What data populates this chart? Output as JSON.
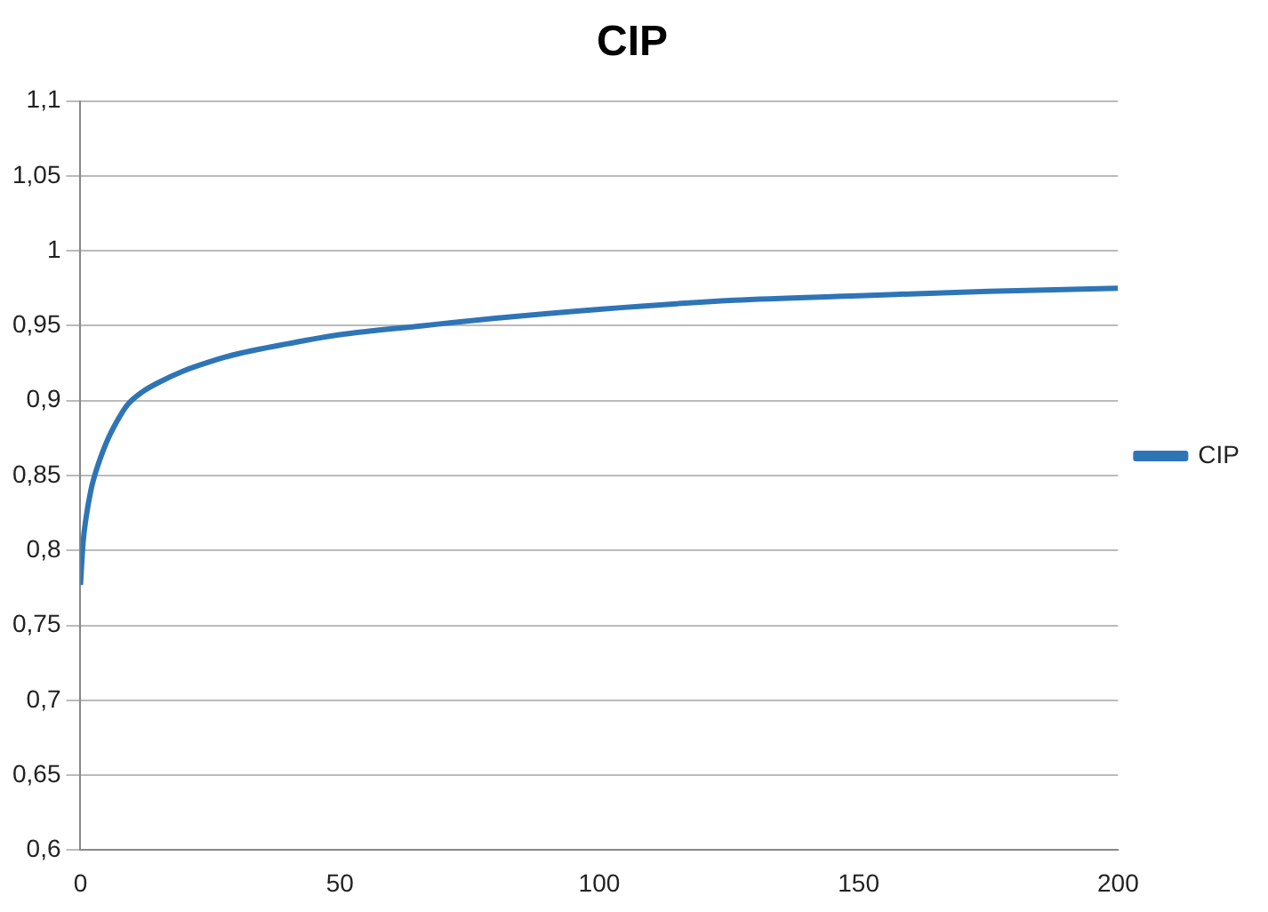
{
  "chart_data": {
    "type": "line",
    "title": "CIP",
    "x": [
      0,
      0.5,
      1,
      2,
      3,
      5,
      7,
      9,
      12,
      15,
      20,
      25,
      30,
      40,
      50,
      66,
      80,
      100,
      126,
      150,
      175,
      200
    ],
    "series": [
      {
        "name": "CIP",
        "color": "#2e75b6",
        "values": [
          0.777,
          0.805,
          0.82,
          0.84,
          0.853,
          0.872,
          0.886,
          0.897,
          0.906,
          0.912,
          0.92,
          0.926,
          0.931,
          0.938,
          0.944,
          0.95,
          0.955,
          0.961,
          0.967,
          0.97,
          0.973,
          0.975
        ]
      }
    ],
    "xlim": [
      0,
      200
    ],
    "xticks": [
      0,
      50,
      100,
      150,
      200
    ],
    "ylim": [
      0.6,
      1.1
    ],
    "yticks": [
      {
        "value": 0.6,
        "label": "0,6"
      },
      {
        "value": 0.65,
        "label": "0,65"
      },
      {
        "value": 0.7,
        "label": "0,7"
      },
      {
        "value": 0.75,
        "label": "0,75"
      },
      {
        "value": 0.8,
        "label": "0,8"
      },
      {
        "value": 0.85,
        "label": "0,85"
      },
      {
        "value": 0.9,
        "label": "0,9"
      },
      {
        "value": 0.95,
        "label": "0,95"
      },
      {
        "value": 1,
        "label": "1"
      },
      {
        "value": 1.05,
        "label": "1,05"
      },
      {
        "value": 1.1,
        "label": "1,1"
      }
    ],
    "grid": "y",
    "legend": "right",
    "marker": "none",
    "line_style": "solid"
  }
}
